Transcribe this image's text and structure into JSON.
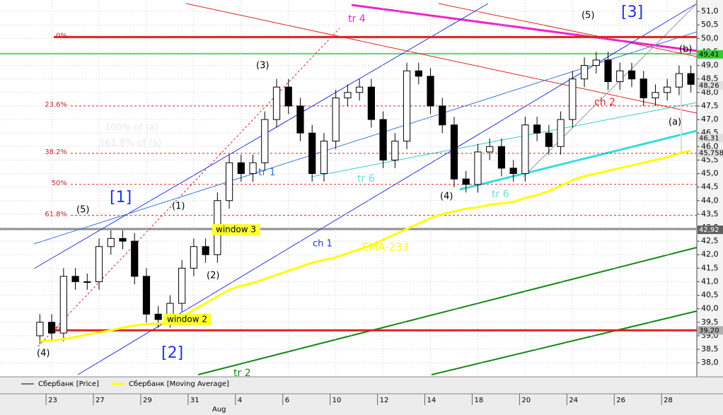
{
  "chart_data": {
    "type": "candlestick",
    "categories": [
      null,
      "23",
      null,
      null,
      null,
      "27",
      null,
      null,
      null,
      "29",
      null,
      null,
      null,
      "31",
      null,
      null,
      null,
      "4",
      null,
      null,
      null,
      "6",
      null,
      null,
      null,
      "10",
      null,
      null,
      null,
      "12",
      null,
      null,
      null,
      "14",
      null,
      null,
      null,
      "18",
      null,
      null,
      null,
      "20",
      null,
      null,
      null,
      "24",
      null,
      null,
      null,
      "26",
      null,
      null,
      null,
      "28",
      null,
      null
    ],
    "month_label": "Aug",
    "series": [
      {
        "name": "Сбербанк [Price]",
        "color": "#000000",
        "open": [
          39.0,
          39.5,
          39.1,
          41.2,
          41.0,
          41.0,
          42.3,
          42.6,
          42.5,
          41.2,
          39.8,
          39.6,
          40.2,
          41.5,
          42.3,
          42.0,
          44.0,
          45.4,
          45.0,
          45.4,
          47.0,
          48.2,
          47.5,
          46.5,
          45.0,
          46.2,
          47.8,
          48.0,
          48.2,
          47.0,
          45.5,
          46.2,
          48.8,
          48.6,
          47.5,
          46.8,
          44.8,
          44.6,
          45.8,
          46.0,
          45.2,
          45.0,
          46.8,
          46.5,
          46.0,
          47.0,
          48.5,
          49.0,
          49.2,
          48.4,
          48.8,
          48.5,
          47.8,
          48.0,
          48.2,
          48.7
        ],
        "high": [
          39.8,
          39.8,
          41.5,
          41.5,
          41.3,
          42.6,
          42.9,
          42.9,
          42.8,
          41.5,
          40.1,
          40.5,
          41.8,
          42.6,
          42.6,
          44.3,
          45.7,
          45.7,
          45.7,
          47.3,
          48.5,
          48.5,
          47.8,
          46.8,
          46.5,
          48.1,
          48.3,
          48.5,
          48.5,
          47.3,
          46.5,
          49.1,
          49.1,
          48.9,
          47.8,
          47.1,
          45.1,
          46.1,
          46.3,
          46.3,
          45.5,
          47.1,
          47.1,
          46.8,
          47.3,
          48.8,
          49.3,
          49.5,
          49.5,
          49.1,
          49.1,
          48.8,
          48.3,
          48.5,
          49.0,
          49.0
        ],
        "low": [
          38.7,
          38.8,
          38.8,
          40.7,
          40.7,
          40.7,
          42.0,
          42.2,
          40.9,
          39.5,
          39.3,
          39.3,
          39.9,
          41.2,
          41.7,
          41.7,
          43.7,
          44.7,
          44.7,
          45.1,
          46.7,
          47.2,
          46.2,
          44.7,
          44.7,
          45.9,
          47.5,
          47.7,
          46.7,
          45.2,
          45.2,
          45.9,
          48.3,
          47.2,
          46.5,
          44.5,
          44.3,
          44.3,
          45.5,
          44.9,
          44.7,
          44.7,
          46.2,
          45.7,
          45.7,
          46.7,
          48.2,
          48.7,
          48.1,
          48.1,
          48.2,
          47.5,
          47.5,
          47.7,
          47.9,
          48.0
        ],
        "close": [
          39.5,
          39.1,
          41.2,
          41.0,
          41.0,
          42.3,
          42.6,
          42.5,
          41.2,
          39.8,
          39.6,
          40.2,
          41.5,
          42.3,
          42.0,
          44.0,
          45.4,
          45.0,
          45.4,
          47.0,
          48.2,
          47.5,
          46.5,
          45.0,
          46.2,
          47.8,
          48.0,
          48.2,
          47.0,
          45.5,
          46.2,
          48.8,
          48.6,
          47.5,
          46.8,
          44.8,
          44.6,
          45.8,
          46.0,
          45.2,
          45.0,
          46.8,
          46.5,
          46.0,
          47.0,
          48.5,
          49.0,
          49.2,
          48.4,
          48.8,
          48.5,
          47.8,
          48.0,
          48.2,
          48.7,
          48.3
        ]
      },
      {
        "name": "Сбербанк [Moving Average]",
        "color": "#ffff00",
        "values": [
          38.8,
          38.82,
          38.88,
          38.95,
          39.05,
          39.12,
          39.2,
          39.3,
          39.38,
          39.43,
          39.45,
          39.5,
          39.7,
          39.95,
          40.2,
          40.45,
          40.7,
          40.85,
          40.95,
          41.1,
          41.25,
          41.4,
          41.55,
          41.7,
          41.8,
          41.9,
          42.05,
          42.2,
          42.35,
          42.55,
          42.75,
          42.95,
          43.15,
          43.35,
          43.5,
          43.6,
          43.7,
          43.75,
          43.85,
          43.9,
          43.95,
          44.1,
          44.2,
          44.35,
          44.55,
          44.75,
          44.9,
          45.0,
          45.1,
          45.2,
          45.3,
          45.4,
          45.5,
          45.6,
          45.75,
          45.85
        ]
      }
    ],
    "ylim": [
      37.56,
      51.29
    ],
    "yticks": [
      {
        "value": 38,
        "label": "38,0"
      },
      {
        "value": 38.5,
        "label": "38,5"
      },
      {
        "value": 39,
        "label": "39,0"
      },
      {
        "value": 39.5,
        "label": "39,5"
      },
      {
        "value": 40,
        "label": "40,0"
      },
      {
        "value": 40.5,
        "label": "40,5"
      },
      {
        "value": 41,
        "label": "41,0"
      },
      {
        "value": 41.5,
        "label": "41,5"
      },
      {
        "value": 42,
        "label": "42,0"
      },
      {
        "value": 42.5,
        "label": "42,5"
      },
      {
        "value": 43,
        "label": "43,0"
      },
      {
        "value": 43.5,
        "label": "43,5"
      },
      {
        "value": 44,
        "label": "44,0"
      },
      {
        "value": 44.5,
        "label": "44,5"
      },
      {
        "value": 45,
        "label": "45,0"
      },
      {
        "value": 45.5,
        "label": "45,5"
      },
      {
        "value": 46,
        "label": "46,0"
      },
      {
        "value": 46.5,
        "label": "46,5"
      },
      {
        "value": 47,
        "label": "47,0"
      },
      {
        "value": 47.5,
        "label": "47,5"
      },
      {
        "value": 48,
        "label": "48,0"
      },
      {
        "value": 48.5,
        "label": "48,5"
      },
      {
        "value": 49,
        "label": "49,0"
      },
      {
        "value": 49.5,
        "label": "49,5"
      },
      {
        "value": 50,
        "label": "50,0"
      },
      {
        "value": 50.5,
        "label": "50,5"
      },
      {
        "value": 51,
        "label": "51,0"
      }
    ],
    "grid": true,
    "fib_levels": [
      {
        "value": 50.05,
        "label": "0%"
      },
      {
        "value": 47.5,
        "label": "23.6%"
      },
      {
        "value": 45.75,
        "label": "38.2%"
      },
      {
        "value": 44.6,
        "label": "50%"
      },
      {
        "value": 43.45,
        "label": "61.8%"
      },
      {
        "value": 39.2,
        "label": "100%"
      }
    ],
    "price_tags": [
      {
        "value": 49.41,
        "label": "49,41",
        "color": "#33cc33"
      },
      {
        "value": 48.26,
        "label": "48,26",
        "color": "#e0e0e0"
      },
      {
        "value": 46.31,
        "label": "46,31",
        "color": "#e0e0e0"
      },
      {
        "value": 45.758,
        "label": "45,758",
        "color": "#e0e0e0"
      },
      {
        "value": 42.92,
        "label": "42,92",
        "color": "#606060"
      },
      {
        "value": 39.2,
        "label": "39,20",
        "color": "#b0b0b0"
      }
    ],
    "annotations": [
      "tr 4",
      "(5)",
      "[3]",
      "(b)",
      "(3)",
      "100% of (a)",
      "161.8% of (a)",
      "[1]",
      "(5)",
      "(1)",
      "tr 1",
      "tr 6",
      "window 3",
      "ch 1",
      "EMA-233",
      "(2)",
      "window 2",
      "[2]",
      "(4)",
      "ch 2",
      "(a)",
      "(4)",
      "tr 6",
      "tr 2"
    ]
  }
}
